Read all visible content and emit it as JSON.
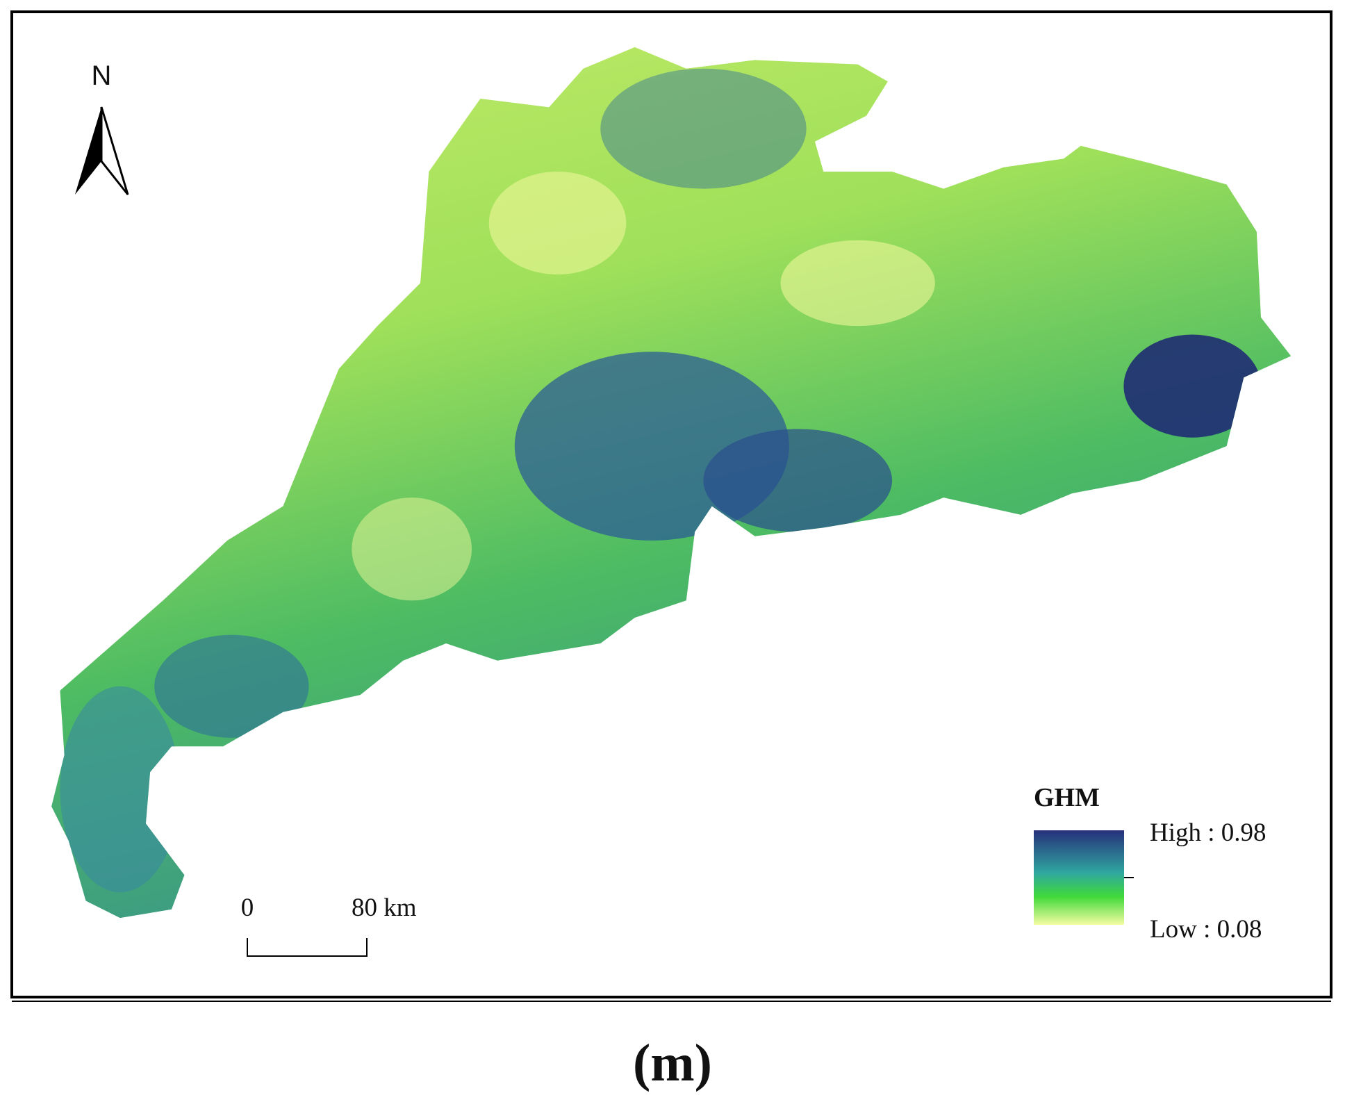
{
  "north_label": "N",
  "legend": {
    "title": "GHM",
    "high": "High : 0.98",
    "low": "Low : 0.08"
  },
  "scale_bar": {
    "start": "0",
    "end": "80 km"
  },
  "caption": "(m)"
}
